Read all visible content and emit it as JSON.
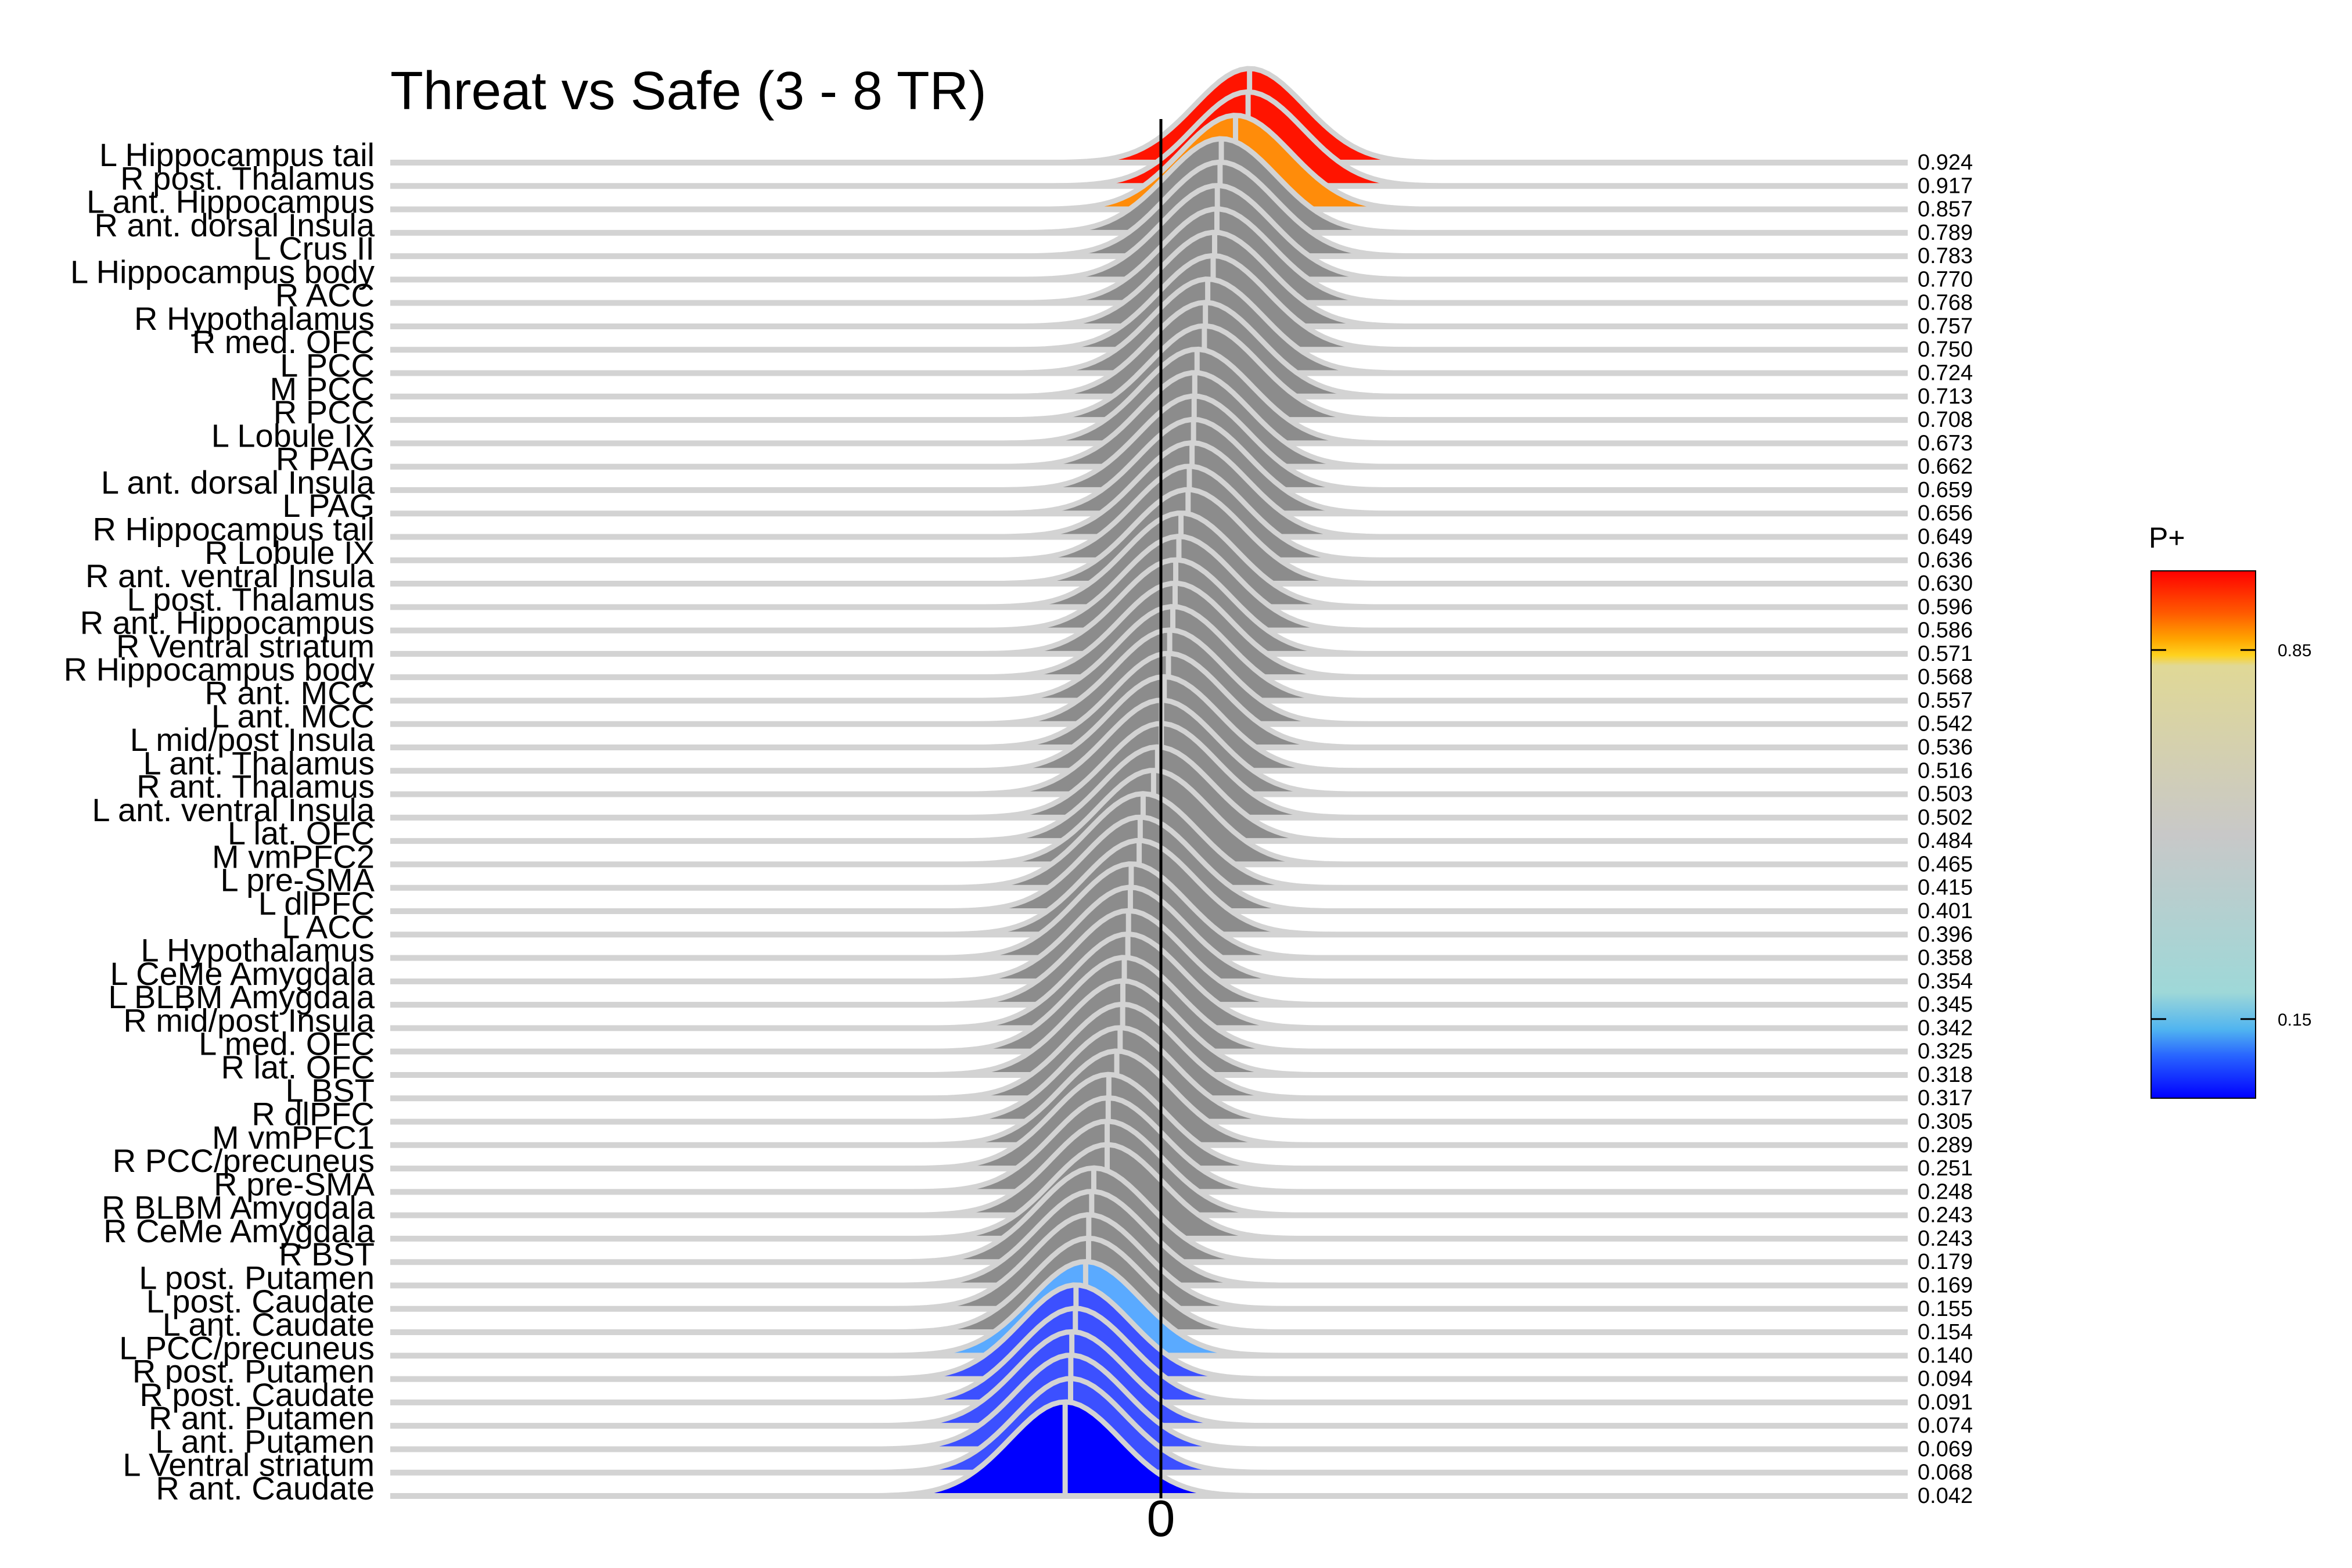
{
  "chart_data": {
    "type": "ridgeline",
    "title": "Threat vs Safe (3 - 8 TR)",
    "xlabel": "",
    "ylabel": "",
    "x_ticks": [
      "0"
    ],
    "legend": {
      "title": "P+",
      "ticks": [
        {
          "value": 0.85,
          "label": "0.85"
        },
        {
          "value": 0.15,
          "label": "0.15"
        }
      ],
      "placement": "right",
      "colors": {
        "high": "#ff0000",
        "upper": "#ff8c00",
        "lower": "#5aaaff",
        "low": "#0000ff",
        "mid": "#8c8c8c"
      }
    },
    "rows": [
      {
        "region": "L Hippocampus tail",
        "p": "0.924"
      },
      {
        "region": "R post. Thalamus",
        "p": "0.917"
      },
      {
        "region": "L ant. Hippocampus",
        "p": "0.857"
      },
      {
        "region": "R ant. dorsal Insula",
        "p": "0.789"
      },
      {
        "region": "L Crus II",
        "p": "0.783"
      },
      {
        "region": "L Hippocampus body",
        "p": "0.770"
      },
      {
        "region": "R ACC",
        "p": "0.768"
      },
      {
        "region": "R Hypothalamus",
        "p": "0.757"
      },
      {
        "region": "R med. OFC",
        "p": "0.750"
      },
      {
        "region": "L PCC",
        "p": "0.724"
      },
      {
        "region": "M PCC",
        "p": "0.713"
      },
      {
        "region": "R PCC",
        "p": "0.708"
      },
      {
        "region": "L Lobule IX",
        "p": "0.673"
      },
      {
        "region": "R PAG",
        "p": "0.662"
      },
      {
        "region": "L ant. dorsal Insula",
        "p": "0.659"
      },
      {
        "region": "L PAG",
        "p": "0.656"
      },
      {
        "region": "R Hippocampus tail",
        "p": "0.649"
      },
      {
        "region": "R Lobule IX",
        "p": "0.636"
      },
      {
        "region": "R ant. ventral Insula",
        "p": "0.630"
      },
      {
        "region": "L post. Thalamus",
        "p": "0.596"
      },
      {
        "region": "R ant. Hippocampus",
        "p": "0.586"
      },
      {
        "region": "R Ventral striatum",
        "p": "0.571"
      },
      {
        "region": "R Hippocampus body",
        "p": "0.568"
      },
      {
        "region": "R ant. MCC",
        "p": "0.557"
      },
      {
        "region": "L ant. MCC",
        "p": "0.542"
      },
      {
        "region": "L mid/post Insula",
        "p": "0.536"
      },
      {
        "region": "L ant. Thalamus",
        "p": "0.516"
      },
      {
        "region": "R ant. Thalamus",
        "p": "0.503"
      },
      {
        "region": "L ant. ventral Insula",
        "p": "0.502"
      },
      {
        "region": "L lat. OFC",
        "p": "0.484"
      },
      {
        "region": "M vmPFC2",
        "p": "0.465"
      },
      {
        "region": "L pre-SMA",
        "p": "0.415"
      },
      {
        "region": "L dlPFC",
        "p": "0.401"
      },
      {
        "region": "L ACC",
        "p": "0.396"
      },
      {
        "region": "L Hypothalamus",
        "p": "0.358"
      },
      {
        "region": "L CeMe Amygdala",
        "p": "0.354"
      },
      {
        "region": "L BLBM Amygdala",
        "p": "0.345"
      },
      {
        "region": "R mid/post Insula",
        "p": "0.342"
      },
      {
        "region": "L med. OFC",
        "p": "0.325"
      },
      {
        "region": "R lat. OFC",
        "p": "0.318"
      },
      {
        "region": "L BST",
        "p": "0.317"
      },
      {
        "region": "R dlPFC",
        "p": "0.305"
      },
      {
        "region": "M vmPFC1",
        "p": "0.289"
      },
      {
        "region": "R PCC/precuneus",
        "p": "0.251"
      },
      {
        "region": "R pre-SMA",
        "p": "0.248"
      },
      {
        "region": "R BLBM Amygdala",
        "p": "0.243"
      },
      {
        "region": "R CeMe Amygdala",
        "p": "0.243"
      },
      {
        "region": "R BST",
        "p": "0.179"
      },
      {
        "region": "L post. Putamen",
        "p": "0.169"
      },
      {
        "region": "L post. Caudate",
        "p": "0.155"
      },
      {
        "region": "L ant. Caudate",
        "p": "0.154"
      },
      {
        "region": "L PCC/precuneus",
        "p": "0.140"
      },
      {
        "region": "R post. Putamen",
        "p": "0.094"
      },
      {
        "region": "R post. Caudate",
        "p": "0.091"
      },
      {
        "region": "R ant. Putamen",
        "p": "0.074"
      },
      {
        "region": "L ant. Putamen",
        "p": "0.069"
      },
      {
        "region": "L Ventral striatum",
        "p": "0.068"
      },
      {
        "region": "R ant. Caudate",
        "p": "0.042"
      }
    ]
  }
}
